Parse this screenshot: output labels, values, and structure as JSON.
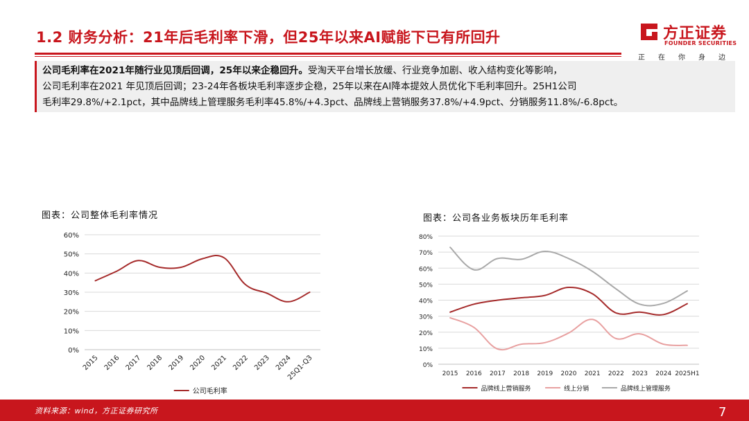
{
  "header": {
    "title": "1.2 财务分析：21年后毛利率下滑，但25年以来AI赋能下已有所回升"
  },
  "logo": {
    "name_cn": "方正证券",
    "name_en": "FOUNDER SECURITIES",
    "slogan": [
      "正",
      "在",
      "你",
      "身",
      "边"
    ],
    "brand_color": "#c8161d"
  },
  "summary": {
    "lead": "公司毛利率在2021年随行业见顶后回调，25年以来企稳回升。",
    "line1_rest": "受淘天平台增长放缓、行业竞争加剧、收入结构变化等影响，",
    "line2": "公司毛利率在2021 年见顶后回调；23-24年各板块毛利率逐步企稳，25年以来在AI降本提效人员优化下毛利率回升。25H1公司",
    "line3": "毛利率29.8%/+2.1pct，其中品牌线上管理服务毛利率45.8%/+4.3pct、品牌线上营销服务37.8%/+4.9pct、分销服务11.8%/-6.8pct。"
  },
  "chart_data": [
    {
      "type": "line",
      "caption": "图表：公司整体毛利率情况",
      "title": "",
      "categories": [
        "2015",
        "2016",
        "2017",
        "2018",
        "2019",
        "2020",
        "2021",
        "2022",
        "2023",
        "2024",
        "25Q1-Q3"
      ],
      "series": [
        {
          "name": "公司毛利率",
          "color": "#a52a2a",
          "values": [
            36,
            41,
            46.5,
            43,
            43,
            47.5,
            48,
            34,
            29.5,
            25,
            30
          ]
        }
      ],
      "ylim": [
        0,
        60
      ],
      "yticks": [
        "0%",
        "10%",
        "20%",
        "30%",
        "40%",
        "50%",
        "60%"
      ],
      "ytick_values": [
        0,
        10,
        20,
        30,
        40,
        50,
        60
      ],
      "xlabel": "",
      "ylabel": "",
      "grid": true,
      "legend": "bottom"
    },
    {
      "type": "line",
      "caption": "图表：公司各业务板块历年毛利率",
      "title": "",
      "categories": [
        "2015",
        "2016",
        "2017",
        "2018",
        "2019",
        "2020",
        "2021",
        "2022",
        "2023",
        "2024",
        "2025H1"
      ],
      "series": [
        {
          "name": "品牌线上营销服务",
          "color": "#a52a2a",
          "values": [
            32.5,
            37.5,
            40,
            41.5,
            43,
            48,
            44,
            32,
            32.5,
            31,
            37.8
          ]
        },
        {
          "name": "线上分销",
          "color": "#e8a0a0",
          "values": [
            29,
            23,
            9.5,
            12.5,
            13.5,
            19.5,
            28,
            16,
            19,
            12.5,
            11.8
          ]
        },
        {
          "name": "品牌线上管理服务",
          "color": "#a8a8a8",
          "values": [
            73,
            59,
            66,
            65.5,
            70.5,
            66,
            58,
            47,
            37.5,
            38,
            45.8
          ]
        }
      ],
      "ylim": [
        0,
        80
      ],
      "yticks": [
        "0%",
        "10%",
        "20%",
        "30%",
        "40%",
        "50%",
        "60%",
        "70%",
        "80%"
      ],
      "ytick_values": [
        0,
        10,
        20,
        30,
        40,
        50,
        60,
        70,
        80
      ],
      "xlabel": "",
      "ylabel": "",
      "grid": true,
      "legend": "bottom"
    }
  ],
  "footer": {
    "source": "资料来源：wind，方正证券研究所",
    "page_number": "7"
  }
}
